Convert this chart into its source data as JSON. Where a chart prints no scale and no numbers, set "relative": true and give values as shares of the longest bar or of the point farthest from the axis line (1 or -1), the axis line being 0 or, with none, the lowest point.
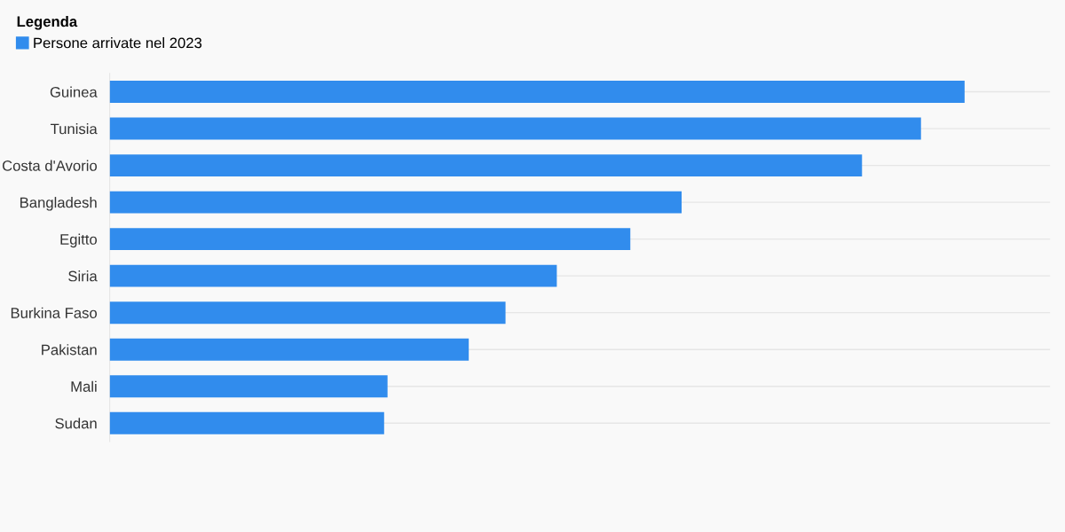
{
  "chart_data": {
    "type": "bar",
    "orientation": "horizontal",
    "relative": true,
    "legend_title": "Legenda",
    "categories": [
      "Guinea",
      "Tunisia",
      "Costa d'Avorio",
      "Bangladesh",
      "Egitto",
      "Siria",
      "Burkina Faso",
      "Pakistan",
      "Mali",
      "Sudan"
    ],
    "series": [
      {
        "name": "Persone arrivate nel 2023",
        "color": "#318ced",
        "values": [
          1,
          0.949,
          0.88,
          0.669,
          0.609,
          0.523,
          0.463,
          0.42,
          0.325,
          0.321
        ]
      }
    ],
    "grid": "y",
    "legend": "top left",
    "tick_labels": "y"
  }
}
